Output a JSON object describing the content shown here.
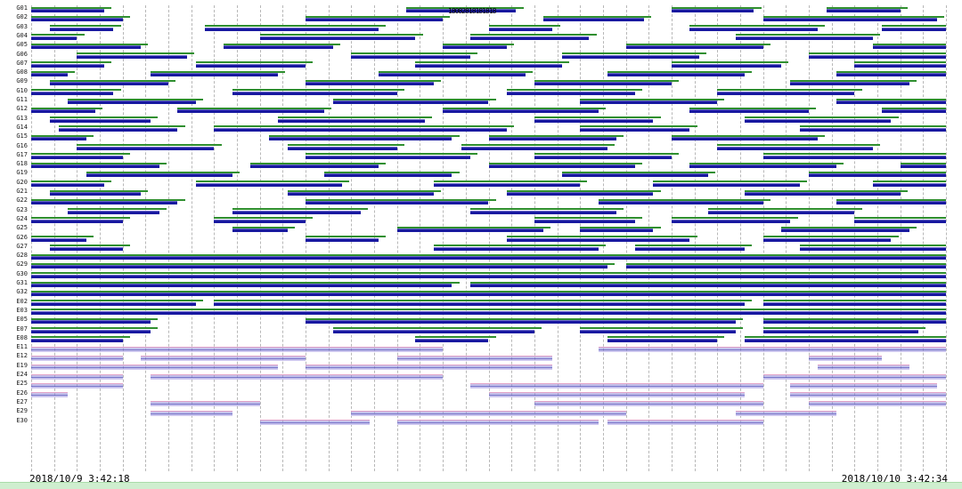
{
  "meta": {
    "description": "Satellite visibility timeline plot over 24 hours",
    "background": "#ffffff"
  },
  "colors": {
    "bar_navy": "#1818a0",
    "bar_green": "#2f8f2f",
    "bar_lavender": "#948cd8",
    "bar_lavender_edge": "#e2a4c8",
    "grid": "#b8b8b8",
    "bottom_strip": "#cfeecf",
    "text": "#000000"
  },
  "chart_data": {
    "type": "gantt-timeline",
    "title": "",
    "x_start_label": "2018/10/9  3:42:18",
    "x_end_label": "2018/10/10  3:42:34",
    "x_range_hours": 24,
    "grid_divisions": 40,
    "grid_style": "vertical-dashed",
    "legend": "none",
    "annotation": "18082818181818",
    "rows": [
      {
        "label": "G01",
        "color": "blue",
        "segments": [
          [
            0.0,
            0.08
          ],
          [
            0.41,
            0.53
          ],
          [
            0.7,
            0.79
          ],
          [
            0.87,
            0.95
          ]
        ]
      },
      {
        "label": "G02",
        "color": "blue",
        "segments": [
          [
            0.0,
            0.1
          ],
          [
            0.3,
            0.45
          ],
          [
            0.56,
            0.67
          ],
          [
            0.8,
            0.99
          ]
        ]
      },
      {
        "label": "G03",
        "color": "blue",
        "segments": [
          [
            0.02,
            0.09
          ],
          [
            0.19,
            0.38
          ],
          [
            0.5,
            0.57
          ],
          [
            0.72,
            0.86
          ],
          [
            0.93,
            1.0
          ]
        ]
      },
      {
        "label": "G04",
        "color": "blue",
        "segments": [
          [
            0.0,
            0.05
          ],
          [
            0.25,
            0.42
          ],
          [
            0.48,
            0.61
          ],
          [
            0.77,
            0.92
          ]
        ]
      },
      {
        "label": "G05",
        "color": "blue",
        "segments": [
          [
            0.0,
            0.12
          ],
          [
            0.21,
            0.33
          ],
          [
            0.45,
            0.52
          ],
          [
            0.65,
            0.8
          ],
          [
            0.92,
            1.0
          ]
        ]
      },
      {
        "label": "G06",
        "color": "blue",
        "segments": [
          [
            0.05,
            0.17
          ],
          [
            0.35,
            0.48
          ],
          [
            0.58,
            0.73
          ],
          [
            0.85,
            1.0
          ]
        ]
      },
      {
        "label": "G07",
        "color": "blue",
        "segments": [
          [
            0.0,
            0.08
          ],
          [
            0.18,
            0.3
          ],
          [
            0.42,
            0.58
          ],
          [
            0.7,
            0.82
          ],
          [
            0.9,
            1.0
          ]
        ]
      },
      {
        "label": "G08",
        "color": "blue",
        "segments": [
          [
            0.0,
            0.04
          ],
          [
            0.13,
            0.27
          ],
          [
            0.38,
            0.54
          ],
          [
            0.63,
            0.78
          ],
          [
            0.88,
            1.0
          ]
        ]
      },
      {
        "label": "G09",
        "color": "blue",
        "segments": [
          [
            0.02,
            0.15
          ],
          [
            0.3,
            0.44
          ],
          [
            0.55,
            0.7
          ],
          [
            0.83,
            0.96
          ]
        ]
      },
      {
        "label": "G10",
        "color": "blue",
        "segments": [
          [
            0.0,
            0.09
          ],
          [
            0.22,
            0.4
          ],
          [
            0.52,
            0.66
          ],
          [
            0.75,
            0.9
          ]
        ]
      },
      {
        "label": "G11",
        "color": "blue",
        "segments": [
          [
            0.04,
            0.18
          ],
          [
            0.33,
            0.5
          ],
          [
            0.6,
            0.75
          ],
          [
            0.88,
            1.0
          ]
        ]
      },
      {
        "label": "G12",
        "color": "blue",
        "segments": [
          [
            0.0,
            0.07
          ],
          [
            0.16,
            0.32
          ],
          [
            0.45,
            0.62
          ],
          [
            0.72,
            0.85
          ],
          [
            0.93,
            1.0
          ]
        ]
      },
      {
        "label": "G13",
        "color": "blue",
        "segments": [
          [
            0.02,
            0.13
          ],
          [
            0.27,
            0.43
          ],
          [
            0.55,
            0.68
          ],
          [
            0.78,
            0.94
          ]
        ]
      },
      {
        "label": "G14",
        "color": "blue",
        "segments": [
          [
            0.03,
            0.16
          ],
          [
            0.2,
            0.52
          ],
          [
            0.6,
            0.72
          ],
          [
            0.84,
            1.0
          ]
        ]
      },
      {
        "label": "G15",
        "color": "blue",
        "segments": [
          [
            0.0,
            0.06
          ],
          [
            0.26,
            0.46
          ],
          [
            0.5,
            0.64
          ],
          [
            0.7,
            0.86
          ]
        ]
      },
      {
        "label": "G16",
        "color": "blue",
        "segments": [
          [
            0.05,
            0.2
          ],
          [
            0.28,
            0.4
          ],
          [
            0.47,
            0.63
          ],
          [
            0.75,
            0.92
          ]
        ]
      },
      {
        "label": "G17",
        "color": "blue",
        "segments": [
          [
            0.0,
            0.1
          ],
          [
            0.3,
            0.48
          ],
          [
            0.55,
            0.7
          ],
          [
            0.8,
            1.0
          ]
        ]
      },
      {
        "label": "G18",
        "color": "blue",
        "segments": [
          [
            0.0,
            0.14
          ],
          [
            0.24,
            0.38
          ],
          [
            0.5,
            0.66
          ],
          [
            0.72,
            0.88
          ],
          [
            0.95,
            1.0
          ]
        ]
      },
      {
        "label": "G19",
        "color": "blue",
        "segments": [
          [
            0.06,
            0.22
          ],
          [
            0.32,
            0.46
          ],
          [
            0.58,
            0.74
          ],
          [
            0.85,
            1.0
          ]
        ]
      },
      {
        "label": "G20",
        "color": "blue",
        "segments": [
          [
            0.0,
            0.08
          ],
          [
            0.18,
            0.34
          ],
          [
            0.44,
            0.6
          ],
          [
            0.68,
            0.84
          ],
          [
            0.92,
            1.0
          ]
        ]
      },
      {
        "label": "G21",
        "color": "blue",
        "segments": [
          [
            0.02,
            0.12
          ],
          [
            0.28,
            0.44
          ],
          [
            0.52,
            0.68
          ],
          [
            0.78,
            0.95
          ]
        ]
      },
      {
        "label": "G22",
        "color": "blue",
        "segments": [
          [
            0.0,
            0.16
          ],
          [
            0.3,
            0.5
          ],
          [
            0.62,
            0.8
          ],
          [
            0.88,
            1.0
          ]
        ]
      },
      {
        "label": "G23",
        "color": "blue",
        "segments": [
          [
            0.04,
            0.14
          ],
          [
            0.22,
            0.36
          ],
          [
            0.48,
            0.64
          ],
          [
            0.74,
            0.9
          ]
        ]
      },
      {
        "label": "G24",
        "color": "blue",
        "segments": [
          [
            0.0,
            0.1
          ],
          [
            0.2,
            0.3
          ],
          [
            0.55,
            0.66
          ],
          [
            0.7,
            0.83
          ],
          [
            0.9,
            1.0
          ]
        ]
      },
      {
        "label": "G25",
        "color": "blue",
        "segments": [
          [
            0.22,
            0.28
          ],
          [
            0.4,
            0.56
          ],
          [
            0.6,
            0.68
          ],
          [
            0.82,
            0.96
          ]
        ]
      },
      {
        "label": "G26",
        "color": "blue",
        "segments": [
          [
            0.0,
            0.06
          ],
          [
            0.3,
            0.38
          ],
          [
            0.52,
            0.72
          ],
          [
            0.8,
            0.94
          ]
        ]
      },
      {
        "label": "G27",
        "color": "blue",
        "segments": [
          [
            0.02,
            0.1
          ],
          [
            0.44,
            0.62
          ],
          [
            0.66,
            0.78
          ],
          [
            0.84,
            1.0
          ]
        ]
      },
      {
        "label": "G28",
        "color": "blue",
        "segments": [
          [
            0.0,
            1.0
          ]
        ]
      },
      {
        "label": "G29",
        "color": "blue",
        "segments": [
          [
            0.0,
            0.63
          ],
          [
            0.65,
            1.0
          ]
        ]
      },
      {
        "label": "G30",
        "color": "blue",
        "segments": [
          [
            0.0,
            1.0
          ]
        ]
      },
      {
        "label": "G31",
        "color": "blue",
        "segments": [
          [
            0.0,
            0.46
          ],
          [
            0.48,
            1.0
          ]
        ]
      },
      {
        "label": "G32",
        "color": "blue",
        "segments": [
          [
            0.0,
            1.0
          ]
        ]
      },
      {
        "label": "E02",
        "color": "blue",
        "segments": [
          [
            0.0,
            0.18
          ],
          [
            0.2,
            0.78
          ],
          [
            0.8,
            1.0
          ]
        ]
      },
      {
        "label": "E03",
        "color": "blue",
        "segments": [
          [
            0.0,
            1.0
          ]
        ]
      },
      {
        "label": "E05",
        "color": "blue",
        "segments": [
          [
            0.0,
            0.13
          ],
          [
            0.3,
            0.77
          ],
          [
            0.8,
            1.0
          ]
        ]
      },
      {
        "label": "E07",
        "color": "blue",
        "segments": [
          [
            0.0,
            0.13
          ],
          [
            0.33,
            0.55
          ],
          [
            0.6,
            0.77
          ],
          [
            0.8,
            0.97
          ]
        ]
      },
      {
        "label": "E08",
        "color": "blue",
        "segments": [
          [
            0.0,
            0.1
          ],
          [
            0.42,
            0.5
          ],
          [
            0.63,
            0.75
          ],
          [
            0.78,
            1.0
          ]
        ]
      },
      {
        "label": "E11",
        "color": "lavender",
        "segments": [
          [
            0.0,
            0.45
          ],
          [
            0.62,
            1.0
          ]
        ]
      },
      {
        "label": "E12",
        "color": "lavender",
        "segments": [
          [
            0.0,
            0.1
          ],
          [
            0.12,
            0.3
          ],
          [
            0.4,
            0.57
          ],
          [
            0.85,
            0.93
          ]
        ]
      },
      {
        "label": "E19",
        "color": "lavender",
        "segments": [
          [
            0.0,
            0.27
          ],
          [
            0.3,
            0.57
          ],
          [
            0.86,
            0.96
          ]
        ]
      },
      {
        "label": "E24",
        "color": "lavender",
        "segments": [
          [
            0.0,
            0.1
          ],
          [
            0.13,
            0.45
          ],
          [
            0.8,
            1.0
          ]
        ]
      },
      {
        "label": "E25",
        "color": "lavender",
        "segments": [
          [
            0.0,
            0.1
          ],
          [
            0.48,
            0.8
          ],
          [
            0.83,
            0.99
          ]
        ]
      },
      {
        "label": "E26",
        "color": "lavender",
        "segments": [
          [
            0.0,
            0.04
          ],
          [
            0.5,
            0.78
          ],
          [
            0.83,
            1.0
          ]
        ]
      },
      {
        "label": "E27",
        "color": "lavender",
        "segments": [
          [
            0.13,
            0.25
          ],
          [
            0.55,
            0.8
          ],
          [
            0.85,
            1.0
          ]
        ]
      },
      {
        "label": "E29",
        "color": "lavender",
        "segments": [
          [
            0.13,
            0.22
          ],
          [
            0.35,
            0.65
          ],
          [
            0.77,
            0.88
          ]
        ]
      },
      {
        "label": "E30",
        "color": "lavender",
        "segments": [
          [
            0.25,
            0.37
          ],
          [
            0.4,
            0.62
          ],
          [
            0.63,
            0.8
          ]
        ]
      }
    ]
  }
}
